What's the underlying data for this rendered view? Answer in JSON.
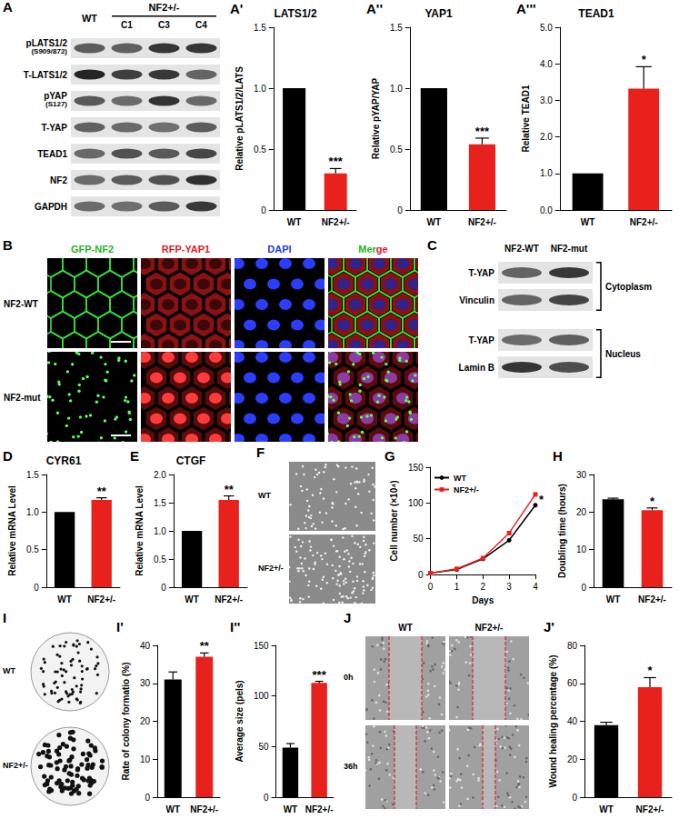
{
  "chart_data": [
    {
      "panel": "A'",
      "type": "bar",
      "title": "LATS1/2",
      "ylabel": "Relative pLATS1/2/LATS",
      "categories": [
        "WT",
        "NF2+/-"
      ],
      "values": [
        1.0,
        0.3
      ],
      "errors": [
        0,
        0.04
      ],
      "colors": [
        "#000000",
        "#e8211d"
      ],
      "ylim": [
        0,
        1.5
      ],
      "yticks": [
        0,
        0.5,
        {
          "value": 1,
          "label": "1.0"
        },
        1.5
      ],
      "annotation": "***",
      "grid": false
    },
    {
      "panel": "A''",
      "type": "bar",
      "title": "YAP1",
      "ylabel": "Relative pYAP/YAP",
      "categories": [
        "WT",
        "NF2+/-"
      ],
      "values": [
        1.0,
        0.54
      ],
      "errors": [
        0,
        0.05
      ],
      "colors": [
        "#000000",
        "#e8211d"
      ],
      "ylim": [
        0,
        1.5
      ],
      "yticks": [
        0,
        0.5,
        {
          "value": 1,
          "label": "1.0"
        },
        1.5
      ],
      "annotation": "***",
      "grid": false
    },
    {
      "panel": "A'''",
      "type": "bar",
      "title": "TEAD1",
      "ylabel": "Relative TEAD1",
      "categories": [
        "WT",
        "NF2+/-"
      ],
      "values": [
        1.0,
        3.32
      ],
      "errors": [
        0,
        0.6
      ],
      "colors": [
        "#000000",
        "#e8211d"
      ],
      "ylim": [
        0,
        5
      ],
      "yticks": [
        {
          "value": 0,
          "label": "0.0"
        },
        {
          "value": 1,
          "label": "1.0"
        },
        {
          "value": 2,
          "label": "2.0"
        },
        {
          "value": 3,
          "label": "3.0"
        },
        {
          "value": 4,
          "label": "4.0"
        },
        {
          "value": 5,
          "label": "5.0"
        }
      ],
      "annotation": "*",
      "grid": false
    },
    {
      "panel": "D",
      "type": "bar",
      "title": "CYR61",
      "ylabel": "Relative mRNA Level",
      "categories": [
        "WT",
        "NF2+/-"
      ],
      "values": [
        1.0,
        1.16
      ],
      "errors": [
        0,
        0.03
      ],
      "colors": [
        "#000000",
        "#e8211d"
      ],
      "ylim": [
        0,
        1.5
      ],
      "yticks": [
        0,
        0.5,
        {
          "value": 1,
          "label": "1.0"
        },
        1.5
      ],
      "annotation": "**",
      "grid": false
    },
    {
      "panel": "E",
      "type": "bar",
      "title": "CTGF",
      "ylabel": "Relative mRNA Level",
      "categories": [
        "WT",
        "NF2+/-"
      ],
      "values": [
        1.0,
        1.55
      ],
      "errors": [
        0,
        0.07
      ],
      "colors": [
        "#000000",
        "#e8211d"
      ],
      "ylim": [
        0,
        2
      ],
      "yticks": [
        0,
        0.5,
        {
          "value": 1,
          "label": "1.0"
        },
        1.5,
        {
          "value": 2,
          "label": "2.0"
        }
      ],
      "annotation": "**",
      "grid": false
    },
    {
      "panel": "G",
      "type": "line",
      "xlabel": "Days",
      "ylabel": "Cell number (×10⁴)",
      "x": [
        0,
        1,
        2,
        3,
        4
      ],
      "xlim": [
        0,
        4
      ],
      "xticks": [
        0,
        1,
        2,
        3,
        4
      ],
      "ylim": [
        0,
        150
      ],
      "yticks": [
        0,
        50,
        100,
        150
      ],
      "series": [
        {
          "name": "WT",
          "color": "#000000",
          "marker": "circle",
          "values": [
            2,
            7,
            22,
            48,
            97
          ]
        },
        {
          "name": "NF2+/-",
          "color": "#e8211d",
          "marker": "square",
          "values": [
            2,
            8,
            23,
            58,
            112
          ]
        }
      ],
      "legend": "upper left",
      "annotation": "*",
      "grid": false
    },
    {
      "panel": "H",
      "type": "bar",
      "ylabel": "Doubling time (hours)",
      "categories": [
        "WT",
        "NF2+/-"
      ],
      "values": [
        23.4,
        20.5
      ],
      "errors": [
        0.3,
        0.6
      ],
      "colors": [
        "#000000",
        "#e8211d"
      ],
      "ylim": [
        0,
        30
      ],
      "yticks": [
        0,
        10,
        20,
        30
      ],
      "annotation": "*",
      "grid": false
    },
    {
      "panel": "I'",
      "type": "bar",
      "ylabel": "Rate of colony formatio (%)",
      "categories": [
        "WT",
        "NF2+/-"
      ],
      "values": [
        31,
        37
      ],
      "errors": [
        2,
        1
      ],
      "colors": [
        "#000000",
        "#e8211d"
      ],
      "ylim": [
        0,
        40
      ],
      "yticks": [
        0,
        10,
        20,
        30,
        40
      ],
      "annotation": "**",
      "grid": false
    },
    {
      "panel": "I''",
      "type": "bar",
      "ylabel": "Average size (pels)",
      "categories": [
        "WT",
        "NF2+/-"
      ],
      "values": [
        49,
        113
      ],
      "errors": [
        4,
        1.5
      ],
      "colors": [
        "#000000",
        "#e8211d"
      ],
      "ylim": [
        0,
        150
      ],
      "yticks": [
        0,
        50,
        100,
        150
      ],
      "annotation": "***",
      "grid": false
    },
    {
      "panel": "J'",
      "type": "bar",
      "ylabel": "Wound healing percentage (%)",
      "categories": [
        "WT",
        "NF2+/-"
      ],
      "values": [
        38,
        58
      ],
      "errors": [
        1.5,
        5
      ],
      "colors": [
        "#000000",
        "#e8211d"
      ],
      "ylim": [
        0,
        80
      ],
      "yticks": [
        0,
        20,
        40,
        60,
        80
      ],
      "annotation": "*",
      "grid": false
    }
  ],
  "blot_A": {
    "panel": "A",
    "groups": [
      {
        "label": "WT"
      },
      {
        "label": "NF2+/-",
        "clones": [
          "C1",
          "C3",
          "C4"
        ]
      }
    ],
    "rows": [
      {
        "label": "pLATS1/2",
        "sublabel": "(S909/872)"
      },
      {
        "label": "T-LATS1/2"
      },
      {
        "label": "pYAP",
        "sublabel": "(S127)"
      },
      {
        "label": "T-YAP"
      },
      {
        "label": "TEAD1"
      },
      {
        "label": "NF2"
      },
      {
        "label": "GAPDH"
      }
    ]
  },
  "images_B": {
    "panel": "B",
    "columns": [
      "GFP-NF2",
      "RFP-YAP1",
      "DAPI",
      "Merge"
    ],
    "rows": [
      "NF2-WT",
      "NF2-mut"
    ]
  },
  "blot_C": {
    "panel": "C",
    "lanes": [
      "NF2-WT",
      "NF2-mut"
    ],
    "fractions": [
      {
        "label": "Cytoplasm",
        "rows": [
          "T-YAP",
          "Vinculin"
        ]
      },
      {
        "label": "Nucleus",
        "rows": [
          "T-YAP",
          "Lamin B"
        ]
      }
    ]
  },
  "images_F": {
    "panel": "F",
    "rows": [
      "WT",
      "NF2+/-"
    ]
  },
  "images_I": {
    "panel": "I",
    "rows": [
      "WT",
      "NF2+/-"
    ]
  },
  "images_J": {
    "panel": "J",
    "columns": [
      "WT",
      "NF2+/-"
    ],
    "rows": [
      "0h",
      "36h"
    ]
  }
}
